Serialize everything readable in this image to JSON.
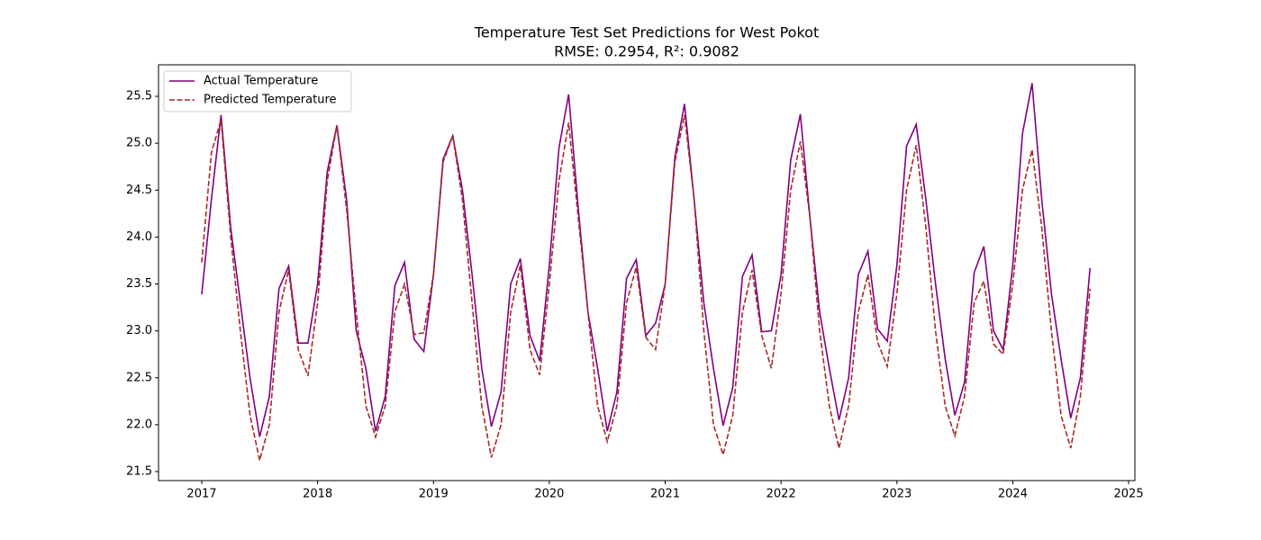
{
  "chart_data": {
    "type": "line",
    "title": "Temperature Test Set Predictions for West Pokot",
    "subtitle": "RMSE: 0.2954, R²: 0.9082",
    "x": [
      "2017-01",
      "2017-02",
      "2017-03",
      "2017-04",
      "2017-05",
      "2017-06",
      "2017-07",
      "2017-08",
      "2017-09",
      "2017-10",
      "2017-11",
      "2017-12",
      "2018-01",
      "2018-02",
      "2018-03",
      "2018-04",
      "2018-05",
      "2018-06",
      "2018-07",
      "2018-08",
      "2018-09",
      "2018-10",
      "2018-11",
      "2018-12",
      "2019-01",
      "2019-02",
      "2019-03",
      "2019-04",
      "2019-05",
      "2019-06",
      "2019-07",
      "2019-08",
      "2019-09",
      "2019-10",
      "2019-11",
      "2019-12",
      "2020-01",
      "2020-02",
      "2020-03",
      "2020-04",
      "2020-05",
      "2020-06",
      "2020-07",
      "2020-08",
      "2020-09",
      "2020-10",
      "2020-11",
      "2020-12",
      "2021-01",
      "2021-02",
      "2021-03",
      "2021-04",
      "2021-05",
      "2021-06",
      "2021-07",
      "2021-08",
      "2021-09",
      "2021-10",
      "2021-11",
      "2021-12",
      "2022-01",
      "2022-02",
      "2022-03",
      "2022-04",
      "2022-05",
      "2022-06",
      "2022-07",
      "2022-08",
      "2022-09",
      "2022-10",
      "2022-11",
      "2022-12",
      "2023-01",
      "2023-02",
      "2023-03",
      "2023-04",
      "2023-05",
      "2023-06",
      "2023-07",
      "2023-08",
      "2023-09",
      "2023-10",
      "2023-11",
      "2023-12",
      "2024-01",
      "2024-02",
      "2024-03",
      "2024-04",
      "2024-05",
      "2024-06",
      "2024-07",
      "2024-08",
      "2024-09"
    ],
    "series": [
      {
        "name": "Actual Temperature",
        "color": "#800080",
        "linestyle": "solid",
        "values": [
          23.39,
          24.4,
          25.3,
          24.1,
          23.3,
          22.5,
          21.87,
          22.3,
          23.45,
          23.69,
          22.87,
          22.87,
          23.5,
          24.7,
          25.19,
          24.4,
          23.0,
          22.6,
          21.93,
          22.3,
          23.48,
          23.73,
          22.91,
          22.78,
          23.6,
          24.83,
          25.08,
          24.5,
          23.6,
          22.6,
          21.98,
          22.35,
          23.5,
          23.77,
          22.95,
          22.68,
          23.7,
          24.95,
          25.52,
          24.3,
          23.2,
          22.6,
          21.93,
          22.35,
          23.56,
          23.76,
          22.95,
          23.08,
          23.5,
          24.85,
          25.42,
          24.4,
          23.3,
          22.6,
          21.99,
          22.4,
          23.58,
          23.81,
          22.99,
          23.0,
          23.6,
          24.82,
          25.31,
          24.2,
          23.2,
          22.6,
          22.05,
          22.5,
          23.6,
          23.85,
          23.02,
          22.89,
          23.7,
          24.97,
          25.2,
          24.4,
          23.5,
          22.7,
          22.1,
          22.45,
          23.62,
          23.9,
          23.0,
          22.8,
          23.7,
          25.1,
          25.64,
          24.4,
          23.4,
          22.7,
          22.07,
          22.5,
          23.67
        ]
      },
      {
        "name": "Predicted Temperature",
        "color": "#a52a2a",
        "linestyle": "dashed",
        "values": [
          23.73,
          24.9,
          25.25,
          24.0,
          23.0,
          22.1,
          21.62,
          22.0,
          23.2,
          23.65,
          22.8,
          22.52,
          23.3,
          24.6,
          25.19,
          24.3,
          23.2,
          22.2,
          21.87,
          22.2,
          23.2,
          23.5,
          22.96,
          22.98,
          23.6,
          24.8,
          25.08,
          24.4,
          23.3,
          22.2,
          21.65,
          22.0,
          23.2,
          23.7,
          22.8,
          22.53,
          23.5,
          24.6,
          25.22,
          24.2,
          23.2,
          22.2,
          21.82,
          22.2,
          23.3,
          23.68,
          22.93,
          22.8,
          23.5,
          24.8,
          25.3,
          24.4,
          23.0,
          22.0,
          21.68,
          22.1,
          23.2,
          23.65,
          22.95,
          22.6,
          23.4,
          24.5,
          25.02,
          24.2,
          23.0,
          22.2,
          21.75,
          22.2,
          23.2,
          23.6,
          22.88,
          22.62,
          23.4,
          24.5,
          24.98,
          24.1,
          23.0,
          22.2,
          21.88,
          22.3,
          23.3,
          23.53,
          22.86,
          22.75,
          23.5,
          24.5,
          24.93,
          24.1,
          23.0,
          22.1,
          21.75,
          22.3,
          23.45
        ]
      }
    ],
    "xlim": [
      2016.627,
      2025.054
    ],
    "xticks": [
      2017,
      2018,
      2019,
      2020,
      2021,
      2022,
      2023,
      2024,
      2025
    ],
    "ylim": [
      21.404,
      25.836
    ],
    "yticks": [
      21.5,
      {
        "value": 22,
        "label": "22.0"
      },
      22.5,
      {
        "value": 23,
        "label": "23.0"
      },
      23.5,
      {
        "value": 24,
        "label": "24.0"
      },
      24.5,
      {
        "value": 25,
        "label": "25.0"
      },
      25.5
    ],
    "grid": false,
    "legend": "upper left"
  }
}
